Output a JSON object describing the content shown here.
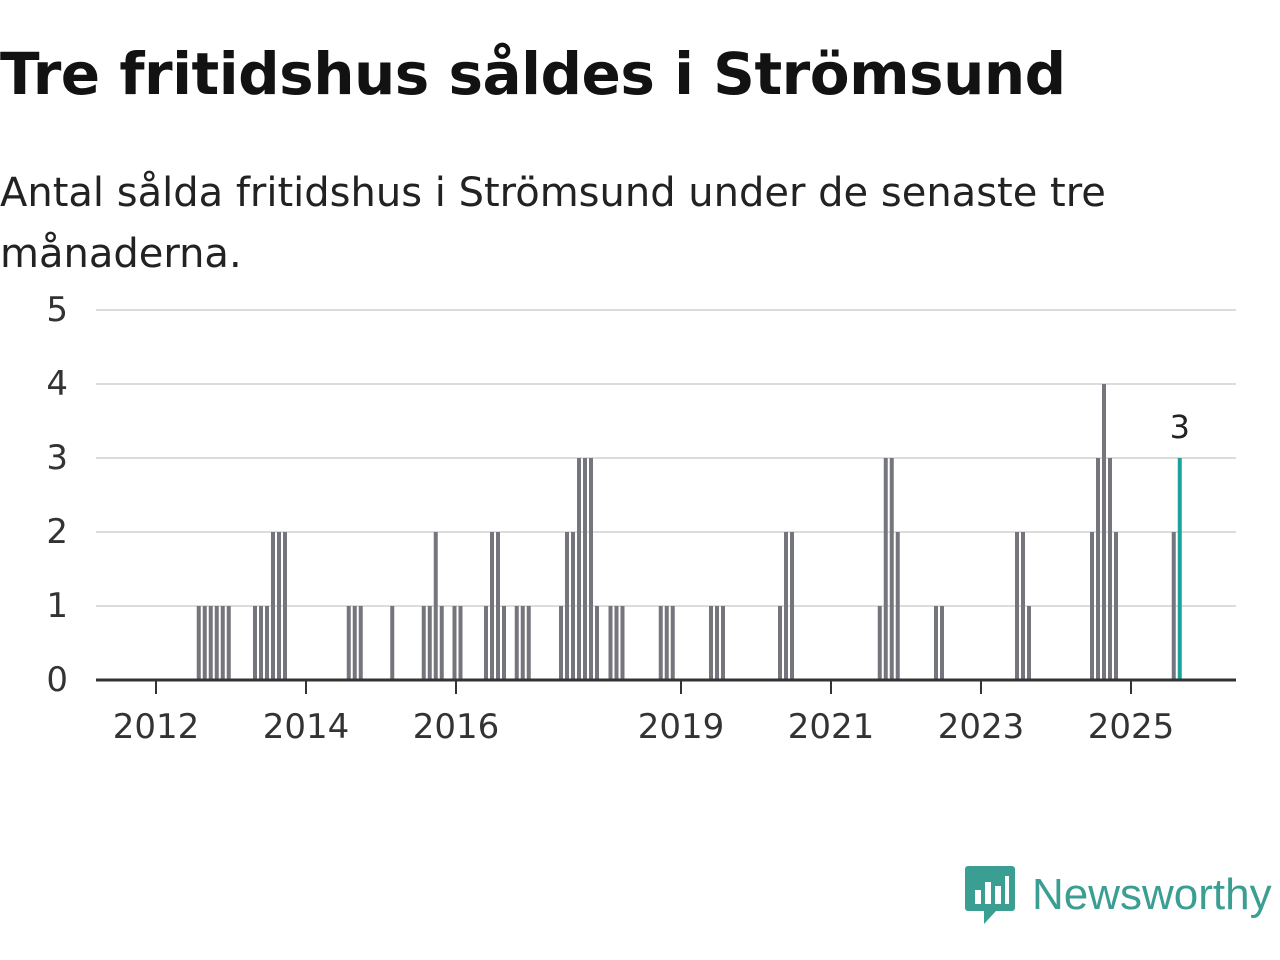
{
  "header": {
    "title": "Tre fritidshus såldes i Strömsund",
    "subtitle": "Antal sålda fritidshus i Strömsund under de senaste tre månaderna."
  },
  "brand": {
    "name": "Newsworthy",
    "color": "#3a9e92",
    "icon": "bar-chart-speech-bubble-icon"
  },
  "colors": {
    "bar": "#75757d",
    "highlight": "#1aa39a",
    "grid": "#dcdcdc",
    "axis": "#333333",
    "tick_text": "#333333"
  },
  "chart_data": {
    "type": "bar",
    "title": "Tre fritidshus såldes i Strömsund",
    "subtitle": "Antal sålda fritidshus i Strömsund under de senaste tre månaderna.",
    "xlabel": "",
    "ylabel": "",
    "ylim": [
      0,
      5
    ],
    "yticks": [
      0,
      1,
      2,
      3,
      4,
      5
    ],
    "xlim": [
      2011.2,
      2026.4
    ],
    "xticks": [
      2012,
      2014,
      2016,
      2019,
      2021,
      2023,
      2025
    ],
    "grid": true,
    "highlight_label": "3",
    "bars": [
      {
        "x": 2012.57,
        "value": 1
      },
      {
        "x": 2012.65,
        "value": 1
      },
      {
        "x": 2012.73,
        "value": 1
      },
      {
        "x": 2012.81,
        "value": 1
      },
      {
        "x": 2012.89,
        "value": 1
      },
      {
        "x": 2012.97,
        "value": 1
      },
      {
        "x": 2013.32,
        "value": 1
      },
      {
        "x": 2013.4,
        "value": 1
      },
      {
        "x": 2013.48,
        "value": 1
      },
      {
        "x": 2013.56,
        "value": 2
      },
      {
        "x": 2013.64,
        "value": 2
      },
      {
        "x": 2013.72,
        "value": 2
      },
      {
        "x": 2014.57,
        "value": 1
      },
      {
        "x": 2014.65,
        "value": 1
      },
      {
        "x": 2014.73,
        "value": 1
      },
      {
        "x": 2015.15,
        "value": 1
      },
      {
        "x": 2015.57,
        "value": 1
      },
      {
        "x": 2015.65,
        "value": 1
      },
      {
        "x": 2015.73,
        "value": 2
      },
      {
        "x": 2015.81,
        "value": 1
      },
      {
        "x": 2015.98,
        "value": 1
      },
      {
        "x": 2016.06,
        "value": 1
      },
      {
        "x": 2016.4,
        "value": 1
      },
      {
        "x": 2016.48,
        "value": 2
      },
      {
        "x": 2016.56,
        "value": 2
      },
      {
        "x": 2016.64,
        "value": 1
      },
      {
        "x": 2016.81,
        "value": 1
      },
      {
        "x": 2016.89,
        "value": 1
      },
      {
        "x": 2016.97,
        "value": 1
      },
      {
        "x": 2017.4,
        "value": 1
      },
      {
        "x": 2017.48,
        "value": 2
      },
      {
        "x": 2017.56,
        "value": 2
      },
      {
        "x": 2017.64,
        "value": 3
      },
      {
        "x": 2017.72,
        "value": 3
      },
      {
        "x": 2017.8,
        "value": 3
      },
      {
        "x": 2017.88,
        "value": 1
      },
      {
        "x": 2018.06,
        "value": 1
      },
      {
        "x": 2018.14,
        "value": 1
      },
      {
        "x": 2018.22,
        "value": 1
      },
      {
        "x": 2018.73,
        "value": 1
      },
      {
        "x": 2018.81,
        "value": 1
      },
      {
        "x": 2018.89,
        "value": 1
      },
      {
        "x": 2019.4,
        "value": 1
      },
      {
        "x": 2019.48,
        "value": 1
      },
      {
        "x": 2019.56,
        "value": 1
      },
      {
        "x": 2020.32,
        "value": 1
      },
      {
        "x": 2020.4,
        "value": 2
      },
      {
        "x": 2020.48,
        "value": 2
      },
      {
        "x": 2021.65,
        "value": 1
      },
      {
        "x": 2021.73,
        "value": 3
      },
      {
        "x": 2021.81,
        "value": 3
      },
      {
        "x": 2021.89,
        "value": 2
      },
      {
        "x": 2022.4,
        "value": 1
      },
      {
        "x": 2022.48,
        "value": 1
      },
      {
        "x": 2023.48,
        "value": 2
      },
      {
        "x": 2023.56,
        "value": 2
      },
      {
        "x": 2023.64,
        "value": 1
      },
      {
        "x": 2024.48,
        "value": 2
      },
      {
        "x": 2024.56,
        "value": 3
      },
      {
        "x": 2024.64,
        "value": 4
      },
      {
        "x": 2024.72,
        "value": 3
      },
      {
        "x": 2024.8,
        "value": 2
      },
      {
        "x": 2025.57,
        "value": 2
      },
      {
        "x": 2025.65,
        "value": 3,
        "highlight": true
      }
    ]
  }
}
